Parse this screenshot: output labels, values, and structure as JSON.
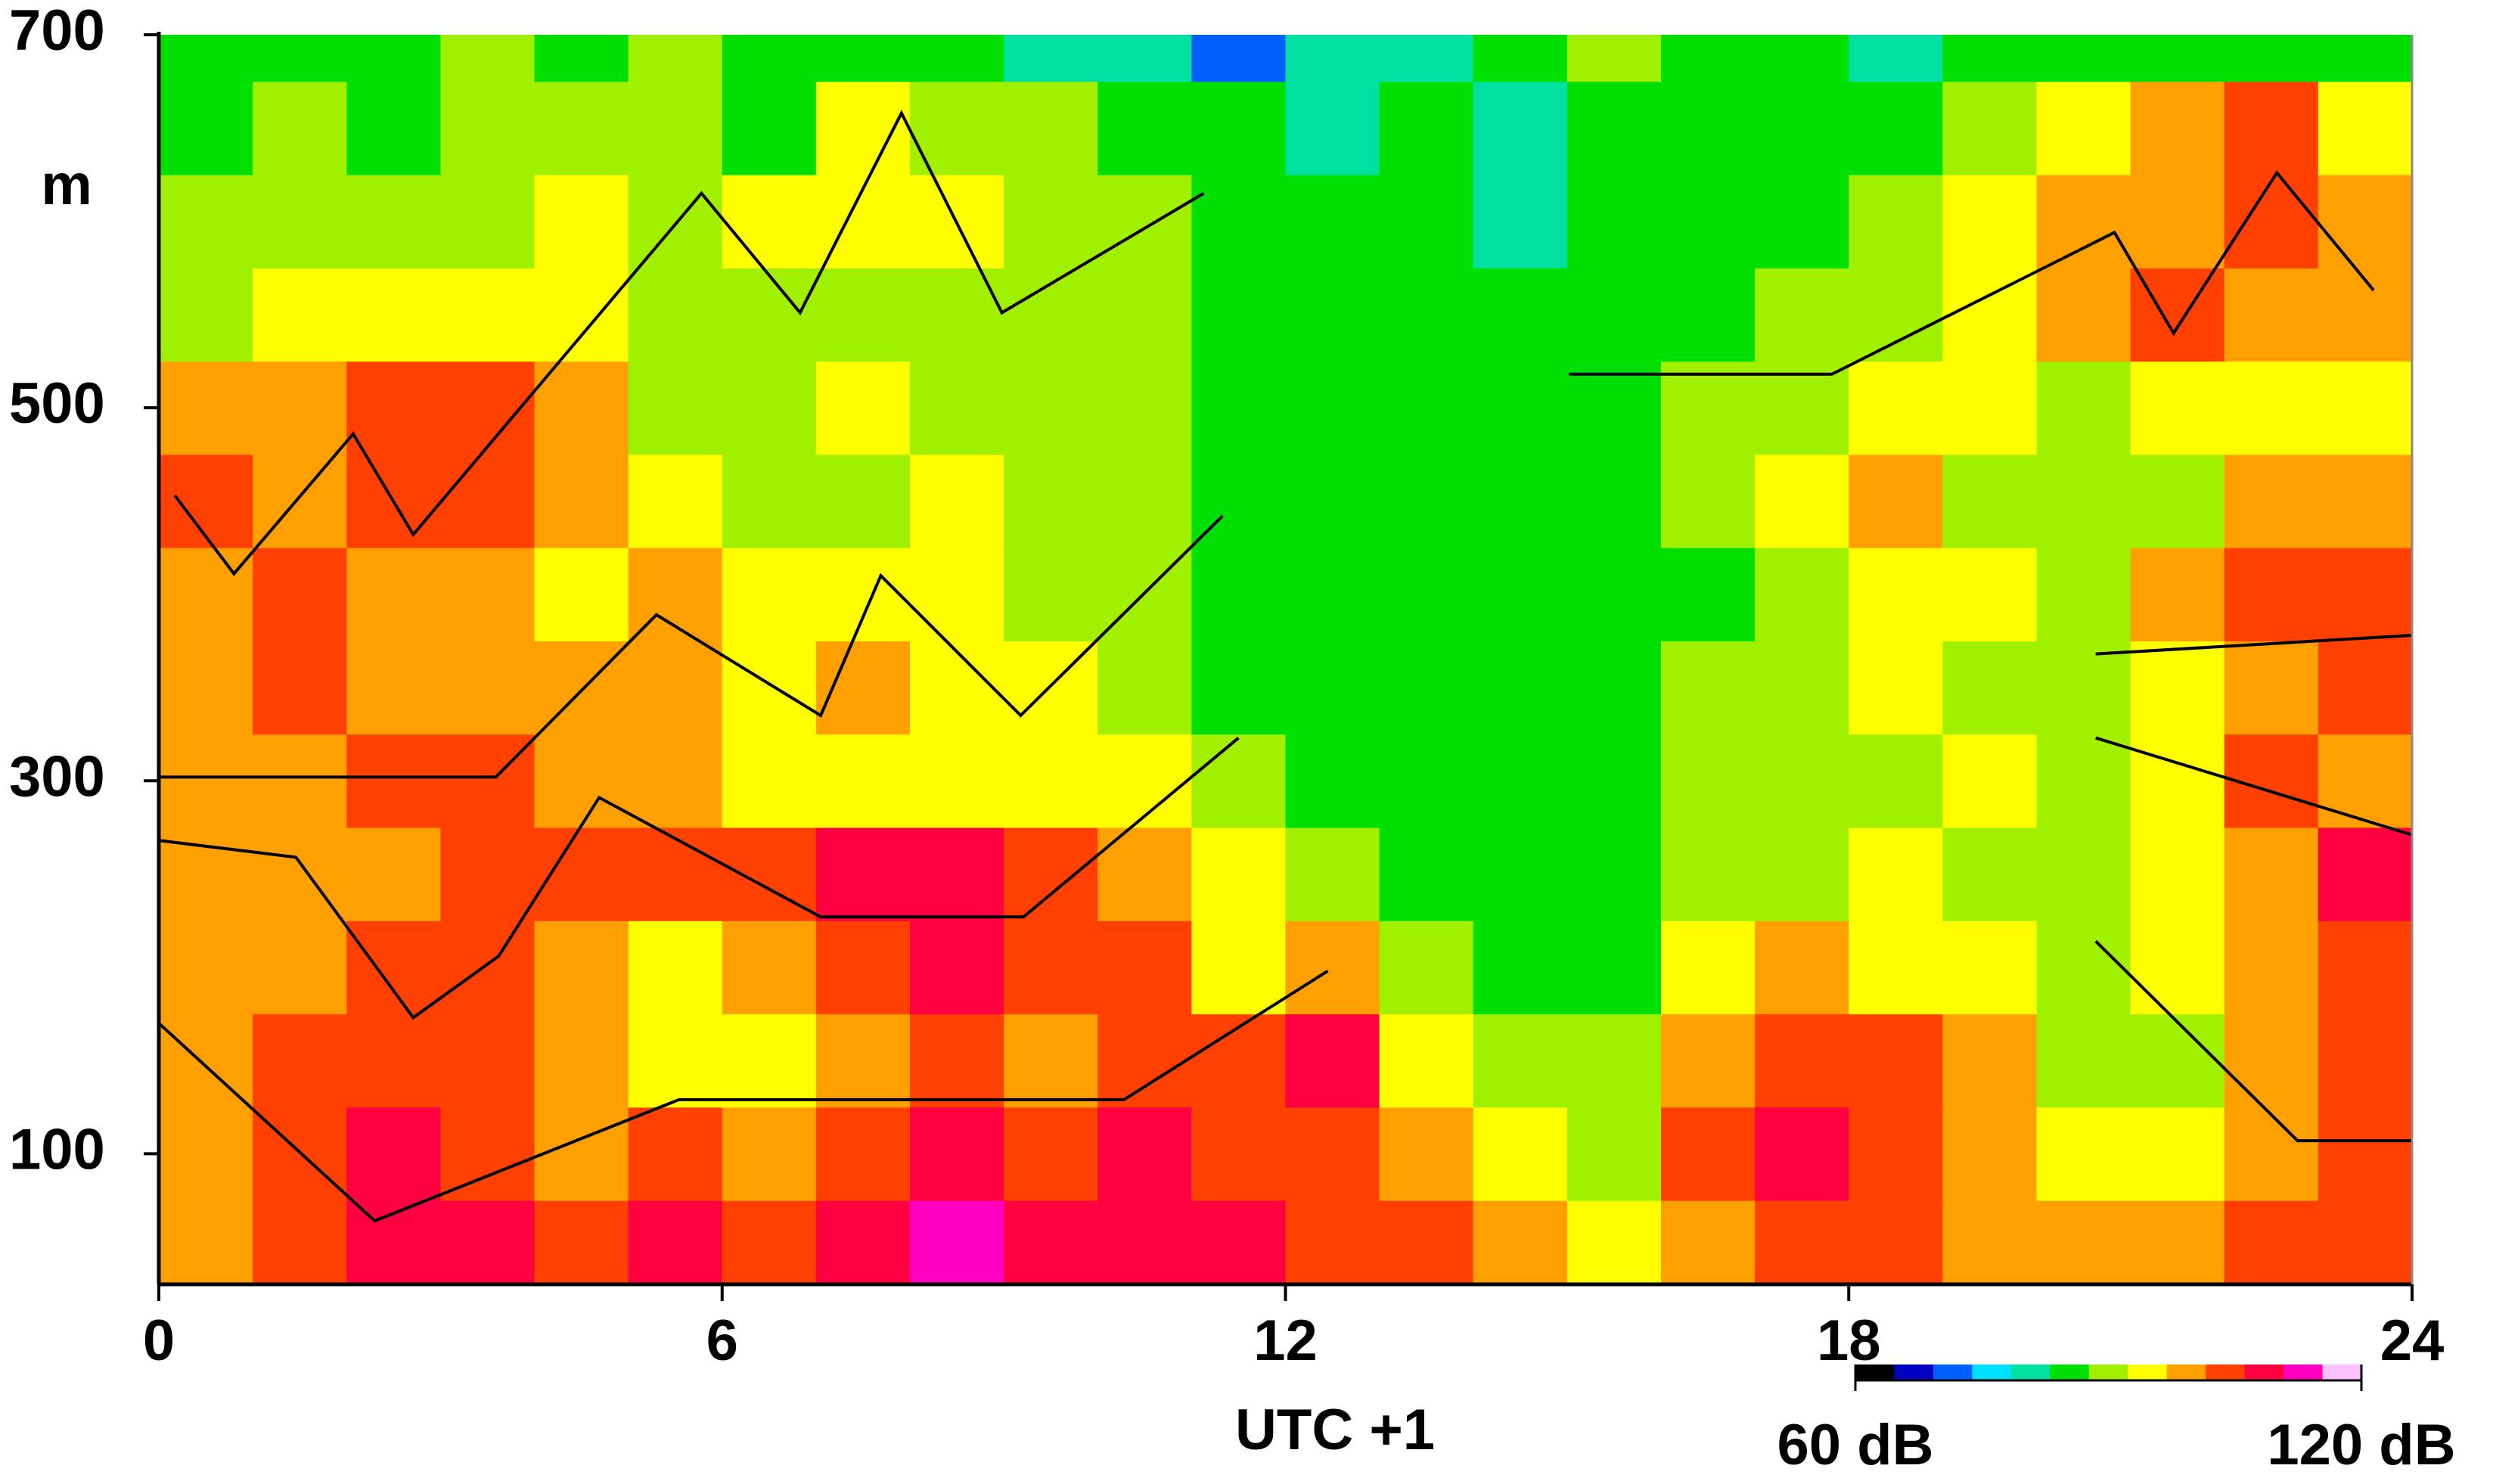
{
  "chart_data": {
    "type": "heatmap",
    "xlabel": "UTC +1",
    "ylabel": "m",
    "xlim": [
      0,
      24
    ],
    "xticks": [
      0,
      6,
      12,
      18,
      24
    ],
    "ylim": [
      30,
      700
    ],
    "yticks": [
      100,
      300,
      500,
      700
    ],
    "xbins": [
      0,
      1,
      2,
      3,
      4,
      5,
      6,
      7,
      8,
      9,
      10,
      11,
      12,
      13,
      14,
      15,
      16,
      17,
      18,
      19,
      20,
      21,
      22,
      23,
      24
    ],
    "ybins": [
      30,
      75,
      125,
      175,
      225,
      275,
      325,
      375,
      425,
      475,
      525,
      575,
      625,
      675,
      700
    ],
    "z": [
      [
        100,
        105,
        110,
        108,
        105,
        108,
        105,
        110,
        113,
        112,
        110,
        108,
        105,
        105,
        98,
        95,
        100,
        105,
        105,
        100,
        98,
        100,
        105,
        105
      ],
      [
        98,
        105,
        108,
        105,
        100,
        103,
        100,
        105,
        108,
        105,
        110,
        105,
        105,
        100,
        95,
        92,
        105,
        108,
        107,
        100,
        95,
        95,
        100,
        107
      ],
      [
        98,
        103,
        105,
        103,
        100,
        95,
        97,
        100,
        103,
        100,
        105,
        103,
        108,
        95,
        92,
        90,
        100,
        105,
        103,
        98,
        92,
        92,
        100,
        105
      ],
      [
        100,
        100,
        103,
        105,
        100,
        97,
        100,
        107,
        108,
        107,
        103,
        95,
        100,
        90,
        86,
        85,
        93,
        98,
        97,
        95,
        90,
        93,
        100,
        103
      ],
      [
        100,
        102,
        100,
        103,
        103,
        105,
        107,
        108,
        108,
        106,
        98,
        93,
        92,
        87,
        85,
        86,
        90,
        92,
        93,
        92,
        88,
        95,
        100,
        108
      ],
      [
        102,
        100,
        103,
        103,
        100,
        98,
        97,
        95,
        97,
        95,
        93,
        90,
        86,
        85,
        85,
        86,
        88,
        90,
        92,
        93,
        90,
        95,
        103,
        100
      ],
      [
        100,
        103,
        100,
        102,
        98,
        100,
        95,
        100,
        93,
        95,
        92,
        87,
        85,
        85,
        84,
        85,
        88,
        92,
        95,
        92,
        88,
        93,
        100,
        103
      ],
      [
        102,
        103,
        100,
        100,
        97,
        98,
        95,
        93,
        95,
        92,
        88,
        85,
        84,
        85,
        83,
        85,
        87,
        92,
        93,
        93,
        88,
        98,
        103,
        103
      ],
      [
        103,
        100,
        105,
        105,
        100,
        93,
        90,
        92,
        95,
        90,
        88,
        86,
        85,
        85,
        84,
        85,
        88,
        93,
        98,
        92,
        88,
        92,
        100,
        98
      ],
      [
        100,
        100,
        103,
        103,
        100,
        90,
        88,
        93,
        90,
        90,
        88,
        87,
        85,
        86,
        83,
        86,
        88,
        90,
        97,
        93,
        88,
        93,
        95,
        95
      ],
      [
        92,
        93,
        95,
        93,
        95,
        90,
        88,
        92,
        90,
        88,
        88,
        86,
        85,
        85,
        83,
        85,
        87,
        88,
        92,
        95,
        98,
        105,
        100,
        98
      ],
      [
        88,
        88,
        92,
        90,
        95,
        90,
        95,
        93,
        95,
        90,
        92,
        85,
        83,
        87,
        82,
        85,
        86,
        86,
        88,
        93,
        100,
        98,
        103,
        100
      ],
      [
        87,
        88,
        87,
        88,
        88,
        90,
        87,
        95,
        90,
        88,
        86,
        86,
        82,
        84,
        80,
        85,
        86,
        85,
        85,
        88,
        95,
        100,
        103,
        95
      ],
      [
        86,
        87,
        87,
        88,
        86,
        88,
        83,
        86,
        84,
        82,
        78,
        72,
        80,
        82,
        85,
        88,
        84,
        85,
        80,
        84,
        85,
        85,
        86,
        86
      ]
    ],
    "clim": [
      60,
      120
    ],
    "cticks": [
      {
        "value": 60,
        "label": "60 dB"
      },
      {
        "value": 120,
        "label": "120 dB"
      }
    ],
    "colors": [
      "#000000",
      "#0000c0",
      "#0060ff",
      "#00e0ff",
      "#00e0a0",
      "#00e000",
      "#a0f000",
      "#ffff00",
      "#ffa000",
      "#ff4000",
      "#ff0040",
      "#ff00c0",
      "#ffc0ff"
    ],
    "line_color": "#000000",
    "lines": [
      {
        "x": [
          0.17,
          0.8,
          2.07,
          2.71,
          5.78,
          6.83,
          7.91,
          8.98,
          11.13
        ],
        "values": [
          453,
          411,
          486,
          432,
          615,
          551,
          658,
          551,
          615
        ]
      },
      {
        "x": [
          15.02,
          17.82,
          20.83,
          21.46,
          22.56,
          23.59
        ],
        "values": [
          518,
          518,
          594,
          540,
          626,
          563
        ]
      },
      {
        "x": [
          0,
          3.59,
          5.3,
          7.05,
          7.69,
          9.18,
          11.33
        ],
        "values": [
          302,
          302,
          389,
          335,
          410,
          335,
          442
        ]
      },
      {
        "x": [
          20.63,
          24
        ],
        "values": [
          368,
          378
        ]
      },
      {
        "x": [
          0,
          1.46,
          2.71,
          3.62,
          4.69,
          7.05,
          9.21,
          11.5
        ],
        "values": [
          268,
          259,
          173,
          206,
          291,
          227,
          227,
          323
        ]
      },
      {
        "x": [
          20.63,
          24
        ],
        "values": [
          323,
          271
        ]
      },
      {
        "x": [
          0,
          2.3,
          5.54,
          10.28,
          12.45
        ],
        "values": [
          170,
          64,
          129,
          129,
          198
        ]
      },
      {
        "x": [
          20.63,
          22.78,
          24
        ],
        "values": [
          214,
          107,
          107
        ]
      }
    ]
  }
}
